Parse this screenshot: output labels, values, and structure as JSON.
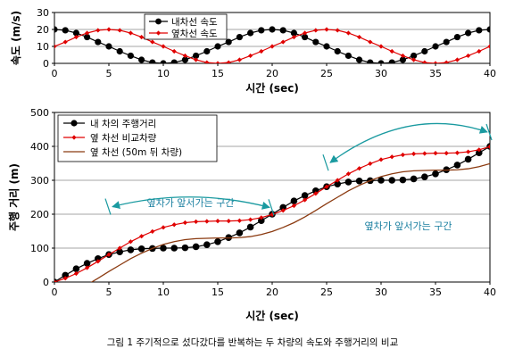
{
  "caption": "그림 1  주기적으로 섰다갔다를 반복하는 두 차량의 속도와 주행거리의 비교",
  "chart_data": [
    {
      "type": "line",
      "ylabel": "속도 (m/s)",
      "xlabel": "시간 (sec)",
      "xlim": [
        0,
        40
      ],
      "ylim": [
        0,
        30
      ],
      "x_ticks": [
        "0",
        "5",
        "10",
        "15",
        "20",
        "25",
        "30",
        "35",
        "40"
      ],
      "y_ticks": [
        "0",
        "10",
        "20",
        "30"
      ],
      "grid": "horizontal",
      "legend_position": "top-center",
      "series": [
        {
          "name": "내차선 속도",
          "color": "#000000",
          "marker": "circle",
          "x": [
            0,
            1,
            2,
            3,
            4,
            5,
            6,
            7,
            8,
            9,
            10,
            11,
            12,
            13,
            14,
            15,
            16,
            17,
            18,
            19,
            20,
            21,
            22,
            23,
            24,
            25,
            26,
            27,
            28,
            29,
            30,
            31,
            32,
            33,
            34,
            35,
            36,
            37,
            38,
            39,
            40
          ],
          "y": [
            20,
            19.5,
            17.9,
            15.5,
            12.6,
            10,
            7.1,
            4.5,
            2.1,
            0.5,
            0,
            0.5,
            2.1,
            4.5,
            7.1,
            10,
            12.6,
            15.5,
            17.9,
            19.5,
            20,
            19.5,
            17.9,
            15.5,
            12.6,
            10,
            7.1,
            4.5,
            2.1,
            0.5,
            0,
            0.5,
            2.1,
            4.5,
            7.1,
            10,
            12.6,
            15.5,
            17.9,
            19.5,
            20
          ]
        },
        {
          "name": "옆차선 속도",
          "color": "#e00000",
          "marker": "diamond",
          "x": [
            0,
            1,
            2,
            3,
            4,
            5,
            6,
            7,
            8,
            9,
            10,
            11,
            12,
            13,
            14,
            15,
            16,
            17,
            18,
            19,
            20,
            21,
            22,
            23,
            24,
            25,
            26,
            27,
            28,
            29,
            30,
            31,
            32,
            33,
            34,
            35,
            36,
            37,
            38,
            39,
            40
          ],
          "y": [
            10,
            12.6,
            15.5,
            17.9,
            19.5,
            20,
            19.5,
            17.9,
            15.5,
            12.6,
            10,
            7.1,
            4.5,
            2.1,
            0.5,
            0,
            0.5,
            2.1,
            4.5,
            7.1,
            10,
            12.6,
            15.5,
            17.9,
            19.5,
            20,
            19.5,
            17.9,
            15.5,
            12.6,
            10,
            7.1,
            4.5,
            2.1,
            0.5,
            0,
            0.5,
            2.1,
            4.5,
            7.1,
            10
          ]
        }
      ]
    },
    {
      "type": "line",
      "ylabel": "주행 거리 (m)",
      "xlabel": "시간 (sec)",
      "xlim": [
        0,
        40
      ],
      "ylim": [
        0,
        500
      ],
      "x_ticks": [
        "0",
        "5",
        "10",
        "15",
        "20",
        "25",
        "30",
        "35",
        "40"
      ],
      "y_ticks": [
        "0",
        "100",
        "200",
        "300",
        "400",
        "500"
      ],
      "grid": "horizontal",
      "legend_position": "top-left",
      "series": [
        {
          "name": "내 차의 주행거리",
          "color": "#000000",
          "marker": "circle",
          "x": [
            0,
            1,
            2,
            3,
            4,
            5,
            6,
            7,
            8,
            9,
            10,
            11,
            12,
            13,
            14,
            15,
            16,
            17,
            18,
            19,
            20,
            21,
            22,
            23,
            24,
            25,
            26,
            27,
            28,
            29,
            30,
            31,
            32,
            33,
            34,
            35,
            36,
            37,
            38,
            39,
            40
          ],
          "y": [
            0,
            20,
            39,
            55,
            69,
            81,
            89,
            95,
            98,
            99,
            100,
            100,
            101,
            104,
            110,
            119,
            131,
            145,
            162,
            181,
            200,
            220,
            239,
            255,
            269,
            281,
            289,
            295,
            298,
            299,
            300,
            300,
            301,
            304,
            310,
            319,
            331,
            345,
            362,
            381,
            400
          ]
        },
        {
          "name": "옆 차선 비교차량",
          "color": "#e00000",
          "marker": "diamond",
          "x": [
            0,
            1,
            2,
            3,
            4,
            5,
            6,
            7,
            8,
            9,
            10,
            11,
            12,
            13,
            14,
            15,
            16,
            17,
            18,
            19,
            20,
            21,
            22,
            23,
            24,
            25,
            26,
            27,
            28,
            29,
            30,
            31,
            32,
            33,
            34,
            35,
            36,
            37,
            38,
            39,
            40
          ],
          "y": [
            0,
            11,
            25,
            42,
            61,
            81,
            100,
            119,
            135,
            149,
            161,
            169,
            175,
            178,
            179,
            180,
            180,
            181,
            184,
            190,
            199,
            211,
            225,
            242,
            261,
            281,
            300,
            319,
            335,
            349,
            361,
            369,
            375,
            378,
            379,
            380,
            380,
            381,
            384,
            390,
            399
          ]
        },
        {
          "name": "옆 차선 (50m 뒤 차량)",
          "color": "#8b3a10",
          "marker": "none",
          "x": [
            3,
            4,
            5,
            6,
            7,
            8,
            9,
            10,
            11,
            12,
            13,
            14,
            15,
            16,
            17,
            18,
            19,
            20,
            21,
            22,
            23,
            24,
            25,
            26,
            27,
            28,
            29,
            30,
            31,
            32,
            33,
            34,
            35,
            36,
            37,
            38,
            39,
            40
          ],
          "y": [
            -8,
            11,
            31,
            50,
            69,
            85,
            99,
            111,
            119,
            125,
            128,
            129,
            130,
            130,
            131,
            134,
            140,
            149,
            161,
            175,
            192,
            211,
            231,
            250,
            269,
            285,
            299,
            311,
            319,
            325,
            328,
            329,
            330,
            330,
            331,
            334,
            340,
            349
          ]
        }
      ],
      "annotations": [
        {
          "text": "옆차가 앞서가는 구간",
          "x_start": 5,
          "x_end": 20
        },
        {
          "text": "옆차가 앞서가는 구간",
          "x_start": 25,
          "x_end": 40
        }
      ]
    }
  ]
}
